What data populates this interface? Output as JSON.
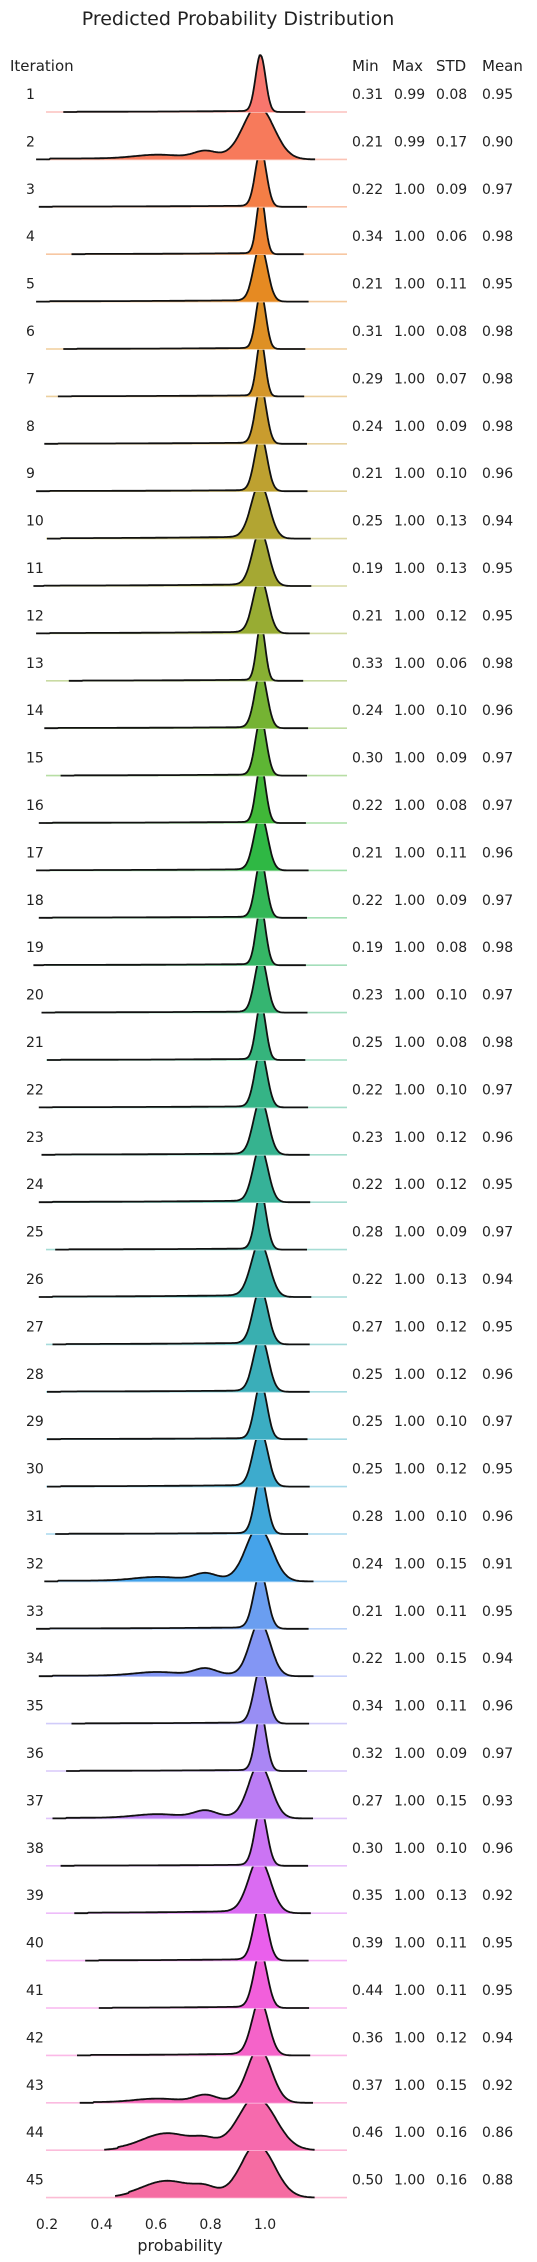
{
  "chart_data": {
    "type": "ridgeline",
    "title": "Predicted Probability Distribution",
    "xlabel": "probability",
    "xlim": [
      0.15,
      1.3
    ],
    "xticks": [
      "0.2",
      "0.4",
      "0.6",
      "0.8",
      "1.0"
    ],
    "xtick_values": [
      0.2,
      0.4,
      0.6,
      0.8,
      1.0
    ],
    "columns": [
      "Iteration",
      "Min",
      "Max",
      "STD",
      "Mean"
    ],
    "grid": false,
    "rows": [
      {
        "iteration": "1",
        "min": "0.31",
        "max": "0.99",
        "std": "0.08",
        "mean": "0.95",
        "color": "#f8766d"
      },
      {
        "iteration": "2",
        "min": "0.21",
        "max": "0.99",
        "std": "0.17",
        "mean": "0.90",
        "color": "#f77a5b"
      },
      {
        "iteration": "3",
        "min": "0.22",
        "max": "1.00",
        "std": "0.09",
        "mean": "0.97",
        "color": "#f47e46"
      },
      {
        "iteration": "4",
        "min": "0.34",
        "max": "1.00",
        "std": "0.06",
        "mean": "0.98",
        "color": "#ee8330"
      },
      {
        "iteration": "5",
        "min": "0.21",
        "max": "1.00",
        "std": "0.11",
        "mean": "0.95",
        "color": "#e68a22"
      },
      {
        "iteration": "6",
        "min": "0.31",
        "max": "1.00",
        "std": "0.08",
        "mean": "0.98",
        "color": "#de9024"
      },
      {
        "iteration": "7",
        "min": "0.29",
        "max": "1.00",
        "std": "0.07",
        "mean": "0.98",
        "color": "#d4962a"
      },
      {
        "iteration": "8",
        "min": "0.24",
        "max": "1.00",
        "std": "0.09",
        "mean": "0.98",
        "color": "#c99c2e"
      },
      {
        "iteration": "9",
        "min": "0.21",
        "max": "1.00",
        "std": "0.10",
        "mean": "0.96",
        "color": "#bea130"
      },
      {
        "iteration": "10",
        "min": "0.25",
        "max": "1.00",
        "std": "0.13",
        "mean": "0.94",
        "color": "#b2a532"
      },
      {
        "iteration": "11",
        "min": "0.19",
        "max": "1.00",
        "std": "0.13",
        "mean": "0.95",
        "color": "#a5a833"
      },
      {
        "iteration": "12",
        "min": "0.21",
        "max": "1.00",
        "std": "0.12",
        "mean": "0.95",
        "color": "#98ac33"
      },
      {
        "iteration": "13",
        "min": "0.33",
        "max": "1.00",
        "std": "0.06",
        "mean": "0.98",
        "color": "#88b033"
      },
      {
        "iteration": "14",
        "min": "0.24",
        "max": "1.00",
        "std": "0.10",
        "mean": "0.96",
        "color": "#75b333"
      },
      {
        "iteration": "15",
        "min": "0.30",
        "max": "1.00",
        "std": "0.09",
        "mean": "0.97",
        "color": "#5eb634"
      },
      {
        "iteration": "16",
        "min": "0.22",
        "max": "1.00",
        "std": "0.08",
        "mean": "0.97",
        "color": "#40b838"
      },
      {
        "iteration": "17",
        "min": "0.21",
        "max": "1.00",
        "std": "0.11",
        "mean": "0.96",
        "color": "#2fb844"
      },
      {
        "iteration": "18",
        "min": "0.22",
        "max": "1.00",
        "std": "0.09",
        "mean": "0.97",
        "color": "#33b757"
      },
      {
        "iteration": "19",
        "min": "0.19",
        "max": "1.00",
        "std": "0.08",
        "mean": "0.98",
        "color": "#35b665"
      },
      {
        "iteration": "20",
        "min": "0.23",
        "max": "1.00",
        "std": "0.10",
        "mean": "0.97",
        "color": "#35b571"
      },
      {
        "iteration": "21",
        "min": "0.25",
        "max": "1.00",
        "std": "0.08",
        "mean": "0.98",
        "color": "#35b47c"
      },
      {
        "iteration": "22",
        "min": "0.22",
        "max": "1.00",
        "std": "0.10",
        "mean": "0.97",
        "color": "#35b486"
      },
      {
        "iteration": "23",
        "min": "0.23",
        "max": "1.00",
        "std": "0.12",
        "mean": "0.96",
        "color": "#36b38f"
      },
      {
        "iteration": "24",
        "min": "0.22",
        "max": "1.00",
        "std": "0.12",
        "mean": "0.95",
        "color": "#36b298"
      },
      {
        "iteration": "25",
        "min": "0.28",
        "max": "1.00",
        "std": "0.09",
        "mean": "0.97",
        "color": "#37b1a0"
      },
      {
        "iteration": "26",
        "min": "0.22",
        "max": "1.00",
        "std": "0.13",
        "mean": "0.94",
        "color": "#38b0a8"
      },
      {
        "iteration": "27",
        "min": "0.27",
        "max": "1.00",
        "std": "0.12",
        "mean": "0.95",
        "color": "#39afb0"
      },
      {
        "iteration": "28",
        "min": "0.25",
        "max": "1.00",
        "std": "0.12",
        "mean": "0.96",
        "color": "#3aaeb9"
      },
      {
        "iteration": "29",
        "min": "0.25",
        "max": "1.00",
        "std": "0.10",
        "mean": "0.97",
        "color": "#3badc2"
      },
      {
        "iteration": "30",
        "min": "0.25",
        "max": "1.00",
        "std": "0.12",
        "mean": "0.95",
        "color": "#3dabcd"
      },
      {
        "iteration": "31",
        "min": "0.28",
        "max": "1.00",
        "std": "0.10",
        "mean": "0.96",
        "color": "#40a8da"
      },
      {
        "iteration": "32",
        "min": "0.24",
        "max": "1.00",
        "std": "0.15",
        "mean": "0.91",
        "color": "#45a3ea"
      },
      {
        "iteration": "33",
        "min": "0.21",
        "max": "1.00",
        "std": "0.11",
        "mean": "0.95",
        "color": "#6a9ef0"
      },
      {
        "iteration": "34",
        "min": "0.22",
        "max": "1.00",
        "std": "0.15",
        "mean": "0.94",
        "color": "#8396f4"
      },
      {
        "iteration": "35",
        "min": "0.34",
        "max": "1.00",
        "std": "0.11",
        "mean": "0.96",
        "color": "#988ef4"
      },
      {
        "iteration": "36",
        "min": "0.32",
        "max": "1.00",
        "std": "0.09",
        "mean": "0.97",
        "color": "#aa86f4"
      },
      {
        "iteration": "37",
        "min": "0.27",
        "max": "1.00",
        "std": "0.15",
        "mean": "0.93",
        "color": "#bb7df4"
      },
      {
        "iteration": "38",
        "min": "0.30",
        "max": "1.00",
        "std": "0.10",
        "mean": "0.96",
        "color": "#cb74f4"
      },
      {
        "iteration": "39",
        "min": "0.35",
        "max": "1.00",
        "std": "0.13",
        "mean": "0.92",
        "color": "#da6bf2"
      },
      {
        "iteration": "40",
        "min": "0.39",
        "max": "1.00",
        "std": "0.11",
        "mean": "0.95",
        "color": "#ea5fec"
      },
      {
        "iteration": "41",
        "min": "0.44",
        "max": "1.00",
        "std": "0.11",
        "mean": "0.95",
        "color": "#f25fdb"
      },
      {
        "iteration": "42",
        "min": "0.36",
        "max": "1.00",
        "std": "0.12",
        "mean": "0.94",
        "color": "#f563c9"
      },
      {
        "iteration": "43",
        "min": "0.37",
        "max": "1.00",
        "std": "0.15",
        "mean": "0.92",
        "color": "#f667ba"
      },
      {
        "iteration": "44",
        "min": "0.46",
        "max": "1.00",
        "std": "0.16",
        "mean": "0.86",
        "color": "#f66aad"
      },
      {
        "iteration": "45",
        "min": "0.50",
        "max": "1.00",
        "std": "0.16",
        "mean": "0.88",
        "color": "#f56ca2"
      }
    ]
  }
}
